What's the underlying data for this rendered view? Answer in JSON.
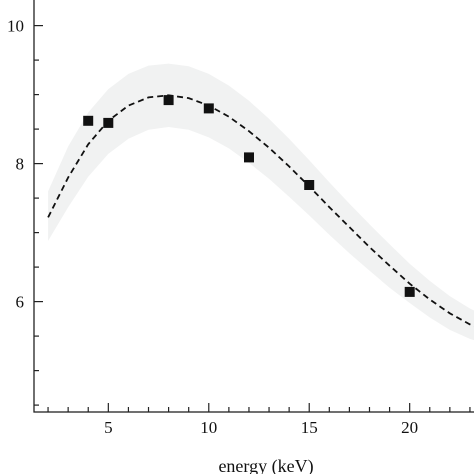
{
  "chart_data": {
    "type": "scatter",
    "xlabel": "energy (keV)",
    "ylabel": "",
    "xlim": [
      1.3,
      23.7
    ],
    "ylim": [
      4.4,
      10.4
    ],
    "x_ticks": [
      5,
      10,
      15,
      20
    ],
    "x_tick_labels": [
      "5",
      "10",
      "15",
      "20"
    ],
    "y_ticks": [
      6,
      8,
      10
    ],
    "y_tick_labels": [
      "6",
      "8",
      "10"
    ],
    "grid": false,
    "series": [
      {
        "kind": "points",
        "marker": "square",
        "x": [
          4,
          5,
          8,
          10,
          12,
          15,
          20
        ],
        "y": [
          8.62,
          8.59,
          8.92,
          8.8,
          8.09,
          7.69,
          6.14
        ]
      },
      {
        "kind": "dashed-line",
        "x": [
          2,
          3,
          4,
          5,
          6,
          7,
          8,
          9,
          10,
          11,
          12,
          13,
          14,
          15,
          16,
          17,
          18,
          19,
          20,
          21,
          22,
          23,
          23.7
        ],
        "y": [
          7.22,
          7.8,
          8.28,
          8.62,
          8.84,
          8.96,
          8.99,
          8.95,
          8.84,
          8.68,
          8.47,
          8.23,
          7.96,
          7.67,
          7.37,
          7.08,
          6.79,
          6.52,
          6.26,
          6.03,
          5.83,
          5.67,
          5.6
        ]
      },
      {
        "kind": "band",
        "x": [
          2,
          3,
          4,
          5,
          6,
          7,
          8,
          9,
          10,
          11,
          12,
          13,
          14,
          15,
          16,
          17,
          18,
          19,
          20,
          21,
          22,
          23,
          23.7
        ],
        "upper": [
          7.6,
          8.25,
          8.74,
          9.08,
          9.3,
          9.42,
          9.45,
          9.41,
          9.3,
          9.13,
          8.91,
          8.65,
          8.36,
          8.05,
          7.73,
          7.42,
          7.12,
          6.83,
          6.55,
          6.3,
          6.08,
          5.9,
          5.8
        ],
        "lower": [
          6.88,
          7.37,
          7.81,
          8.14,
          8.36,
          8.49,
          8.53,
          8.49,
          8.38,
          8.22,
          8.01,
          7.78,
          7.52,
          7.25,
          6.97,
          6.7,
          6.45,
          6.2,
          5.98,
          5.77,
          5.59,
          5.46,
          5.4
        ]
      }
    ],
    "colors": {
      "band": "#f1f2f2",
      "line": "#111111",
      "marker": "#111111",
      "axis": "#222222"
    }
  }
}
